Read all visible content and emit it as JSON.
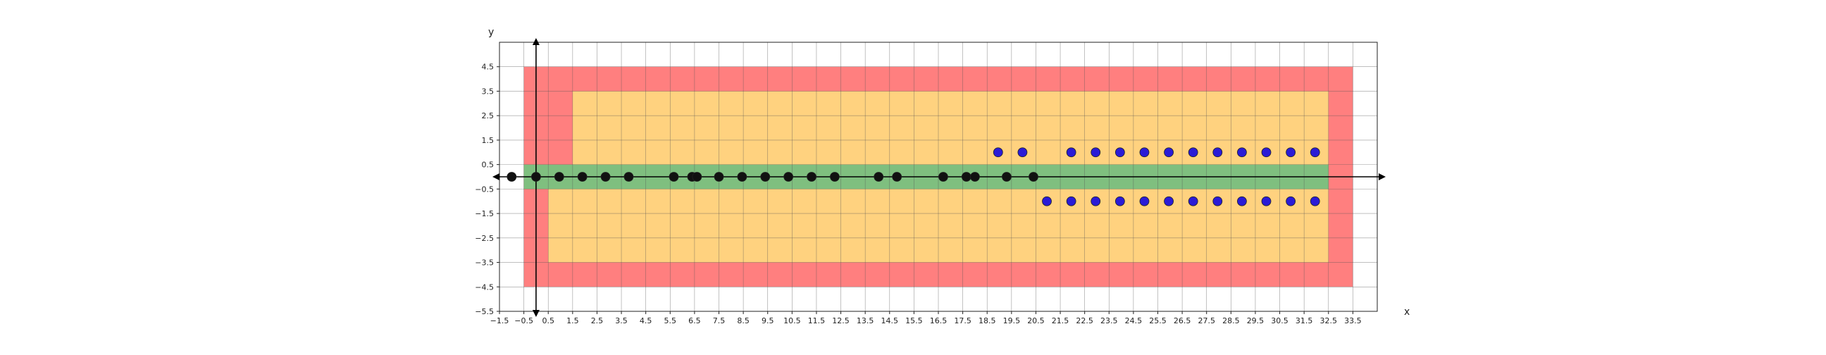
{
  "chart_data": {
    "type": "scatter",
    "title": "",
    "xlabel": "x",
    "ylabel": "y",
    "xlim": [
      -1.5,
      34.5
    ],
    "ylim": [
      -5.5,
      5.5
    ],
    "grid": true,
    "x_ticks": [
      -1.5,
      -0.5,
      0.5,
      1.5,
      2.5,
      3.5,
      4.5,
      5.5,
      6.5,
      7.5,
      8.5,
      9.5,
      10.5,
      11.5,
      12.5,
      13.5,
      14.5,
      15.5,
      16.5,
      17.5,
      18.5,
      19.5,
      20.5,
      21.5,
      22.5,
      23.5,
      24.5,
      25.5,
      26.5,
      27.5,
      28.5,
      29.5,
      30.5,
      31.5,
      32.5,
      33.5
    ],
    "x_tick_labels": [
      "−1.5",
      "−0.5",
      "0.5",
      "1.5",
      "2.5",
      "3.5",
      "4.5",
      "5.5",
      "6.5",
      "7.5",
      "8.5",
      "9.5",
      "10.5",
      "11.5",
      "12.5",
      "13.5",
      "14.5",
      "15.5",
      "16.5",
      "17.5",
      "18.5",
      "19.5",
      "20.5",
      "21.5",
      "22.5",
      "23.5",
      "24.5",
      "25.5",
      "26.5",
      "27.5",
      "28.5",
      "29.5",
      "30.5",
      "31.5",
      "32.5",
      "33.5"
    ],
    "y_ticks": [
      -5.5,
      -4.5,
      -3.5,
      -2.5,
      -1.5,
      -0.5,
      0.5,
      1.5,
      2.5,
      3.5,
      4.5
    ],
    "y_tick_labels": [
      "−5.5",
      "−4.5",
      "−3.5",
      "−2.5",
      "−1.5",
      "−0.5",
      "0.5",
      "1.5",
      "2.5",
      "3.5",
      "4.5"
    ],
    "regions": [
      {
        "color": "#ff7f7f",
        "polygon": [
          [
            -0.5,
            4.5
          ],
          [
            33.5,
            4.5
          ],
          [
            33.5,
            -4.5
          ],
          [
            -0.5,
            -4.5
          ]
        ]
      },
      {
        "color": "#ffd27f",
        "polygon": [
          [
            1.5,
            3.5
          ],
          [
            32.5,
            3.5
          ],
          [
            32.5,
            -3.5
          ],
          [
            0.5,
            -3.5
          ],
          [
            0.5,
            -0.5
          ],
          [
            -0.5,
            -0.5
          ],
          [
            -0.5,
            0.5
          ],
          [
            1.5,
            0.5
          ]
        ]
      },
      {
        "color": "#7fbf7f",
        "polygon": [
          [
            -0.5,
            0.5
          ],
          [
            32.5,
            0.5
          ],
          [
            32.5,
            -0.5
          ],
          [
            -0.5,
            -0.5
          ]
        ]
      }
    ],
    "series": [
      {
        "color": "#111111",
        "points": [
          [
            -1.0,
            0
          ],
          [
            0.0,
            0
          ],
          [
            0.95,
            0
          ],
          [
            1.9,
            0
          ],
          [
            2.85,
            0
          ],
          [
            3.8,
            0
          ],
          [
            5.65,
            0
          ],
          [
            6.4,
            0
          ],
          [
            6.6,
            0
          ],
          [
            7.5,
            0
          ],
          [
            8.45,
            0
          ],
          [
            9.4,
            0
          ],
          [
            10.35,
            0
          ],
          [
            11.3,
            0
          ],
          [
            12.25,
            0
          ],
          [
            14.05,
            0
          ],
          [
            14.8,
            0
          ],
          [
            16.7,
            0
          ],
          [
            17.65,
            0
          ],
          [
            18.0,
            0
          ],
          [
            19.3,
            0
          ],
          [
            20.4,
            0
          ]
        ]
      },
      {
        "color": "#2a1bd6",
        "points": [
          [
            18.95,
            1
          ],
          [
            19.95,
            1
          ],
          [
            21.95,
            1
          ],
          [
            22.95,
            1
          ],
          [
            23.95,
            1
          ],
          [
            24.95,
            1
          ],
          [
            25.95,
            1
          ],
          [
            26.95,
            1
          ],
          [
            27.95,
            1
          ],
          [
            28.95,
            1
          ],
          [
            29.95,
            1
          ],
          [
            30.95,
            1
          ],
          [
            31.95,
            1
          ],
          [
            20.95,
            -1
          ],
          [
            21.95,
            -1
          ],
          [
            22.95,
            -1
          ],
          [
            23.95,
            -1
          ],
          [
            24.95,
            -1
          ],
          [
            25.95,
            -1
          ],
          [
            26.95,
            -1
          ],
          [
            27.95,
            -1
          ],
          [
            28.95,
            -1
          ],
          [
            29.95,
            -1
          ],
          [
            30.95,
            -1
          ],
          [
            31.95,
            -1
          ]
        ]
      }
    ]
  }
}
